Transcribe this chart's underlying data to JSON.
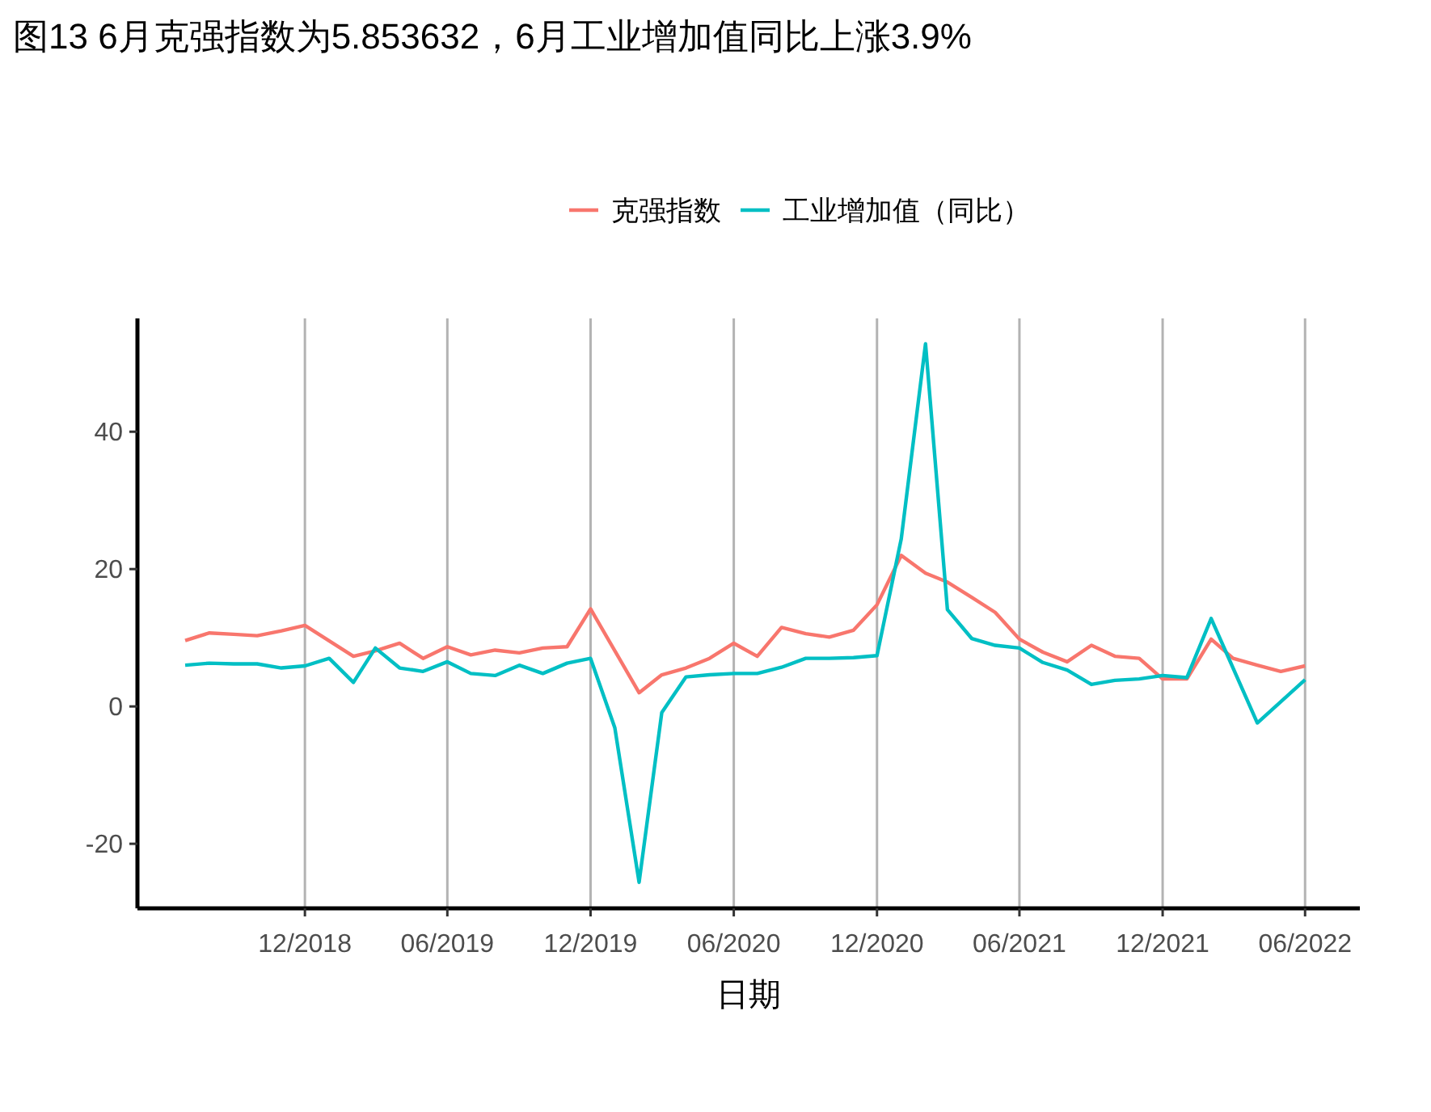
{
  "chart_data": {
    "type": "line",
    "title": "图13 6月克强指数为5.853632，6月工业增加值同比上涨3.9%",
    "xlabel": "日期",
    "xlim": [
      "2018-05-01",
      "2022-08-10"
    ],
    "xticks": [
      {
        "value": "2018-12",
        "label": "12/2018"
      },
      {
        "value": "2019-06",
        "label": "06/2019"
      },
      {
        "value": "2019-12",
        "label": "12/2019"
      },
      {
        "value": "2020-06",
        "label": "06/2020"
      },
      {
        "value": "2020-12",
        "label": "12/2020"
      },
      {
        "value": "2021-06",
        "label": "06/2021"
      },
      {
        "value": "2021-12",
        "label": "12/2021"
      },
      {
        "value": "2022-06",
        "label": "06/2022"
      }
    ],
    "ylim": [
      -29.4,
      56.5
    ],
    "yticks": [
      -20,
      0,
      20,
      40
    ],
    "grid": "x",
    "legend": "top",
    "series": [
      {
        "name": "克强指数",
        "color": "#f8766d",
        "x": [
          "2018-07",
          "2018-08",
          "2018-09",
          "2018-10",
          "2018-11",
          "2018-12",
          "2019-02",
          "2019-03",
          "2019-04",
          "2019-05",
          "2019-06",
          "2019-07",
          "2019-08",
          "2019-09",
          "2019-10",
          "2019-11",
          "2019-12",
          "2020-02",
          "2020-03",
          "2020-04",
          "2020-05",
          "2020-06",
          "2020-07",
          "2020-08",
          "2020-09",
          "2020-10",
          "2020-11",
          "2020-12",
          "2021-01",
          "2021-02",
          "2021-03",
          "2021-04",
          "2021-05",
          "2021-06",
          "2021-07",
          "2021-08",
          "2021-09",
          "2021-10",
          "2021-11",
          "2021-12",
          "2022-01",
          "2022-02",
          "2022-03",
          "2022-04",
          "2022-05",
          "2022-06"
        ],
        "values": [
          9.6,
          10.7,
          10.5,
          10.3,
          11.0,
          11.8,
          7.3,
          8.1,
          9.2,
          7.0,
          8.7,
          7.5,
          8.2,
          7.8,
          8.5,
          8.7,
          14.2,
          2.0,
          4.6,
          5.6,
          7.0,
          9.2,
          7.3,
          11.5,
          10.6,
          10.1,
          11.1,
          14.8,
          22.0,
          19.4,
          18.1,
          15.9,
          13.7,
          9.8,
          7.9,
          6.5,
          8.9,
          7.3,
          7.0,
          4.0,
          4.0,
          9.8,
          7.0,
          6.0,
          5.1,
          5.9
        ]
      },
      {
        "name": "工业增加值（同比）",
        "color": "#00bfc4",
        "x": [
          "2018-07",
          "2018-08",
          "2018-09",
          "2018-10",
          "2018-11",
          "2018-12",
          "2019-01",
          "2019-02",
          "2019-03",
          "2019-04",
          "2019-05",
          "2019-06",
          "2019-07",
          "2019-08",
          "2019-09",
          "2019-10",
          "2019-11",
          "2019-12",
          "2020-01",
          "2020-02",
          "2020-03",
          "2020-04",
          "2020-05",
          "2020-06",
          "2020-07",
          "2020-08",
          "2020-09",
          "2020-10",
          "2020-11",
          "2020-12",
          "2021-01",
          "2021-02",
          "2021-03",
          "2021-04",
          "2021-05",
          "2021-06",
          "2021-07",
          "2021-08",
          "2021-09",
          "2021-10",
          "2021-11",
          "2021-12",
          "2022-01",
          "2022-02",
          "2022-04",
          "2022-06"
        ],
        "values": [
          6.0,
          6.3,
          6.2,
          6.2,
          5.6,
          5.9,
          7.0,
          3.5,
          8.5,
          5.6,
          5.1,
          6.5,
          4.8,
          4.5,
          6.0,
          4.8,
          6.3,
          7.0,
          -3.1,
          -25.6,
          -0.9,
          4.3,
          4.6,
          4.8,
          4.8,
          5.7,
          7.0,
          7.0,
          7.1,
          7.4,
          24.4,
          52.8,
          14.1,
          9.9,
          8.9,
          8.5,
          6.4,
          5.3,
          3.2,
          3.8,
          4.0,
          4.5,
          4.2,
          12.8,
          -2.4,
          3.9
        ]
      }
    ]
  }
}
